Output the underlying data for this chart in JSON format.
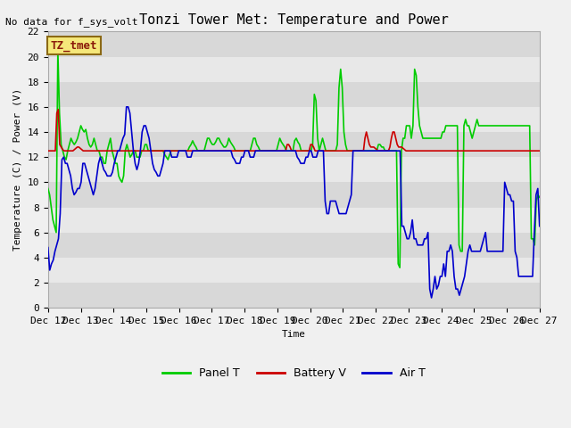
{
  "title": "Tonzi Tower Met: Temperature and Power",
  "no_data_text": "No data for f_sys_volt",
  "box_label": "TZ_tmet",
  "ylabel": "Temperature (C) / Power (V)",
  "xlabel": "Time",
  "ylim": [
    0,
    22
  ],
  "yticks": [
    0,
    2,
    4,
    6,
    8,
    10,
    12,
    14,
    16,
    18,
    20,
    22
  ],
  "xlim": [
    0,
    375
  ],
  "xtick_positions": [
    0,
    24,
    48,
    72,
    96,
    120,
    144,
    168,
    192,
    216,
    240,
    264,
    288,
    312,
    336,
    360
  ],
  "xtick_labels": [
    "Dec 12",
    "Dec 13",
    "Dec 14",
    "Dec 15",
    "Dec 16",
    "Dec 17",
    "Dec 18",
    "Dec 19",
    "Dec 20",
    "Dec 21",
    "Dec 22",
    "Dec 23",
    "Dec 24",
    "Dec 25",
    "Dec 26",
    "Dec 27"
  ],
  "bg_color": "#e8e8e8",
  "plot_bg_color": "#e0e0e0",
  "legend_entries": [
    "Panel T",
    "Battery V",
    "Air T"
  ],
  "legend_colors": [
    "#00cc00",
    "#cc0000",
    "#0000cc"
  ],
  "panel_t": [
    9.5,
    9.0,
    8.0,
    7.0,
    6.5,
    6.0,
    20.5,
    15.5,
    13.0,
    12.5,
    12.0,
    11.8,
    12.5,
    13.0,
    13.5,
    13.2,
    13.0,
    13.2,
    13.5,
    14.0,
    14.5,
    14.2,
    14.0,
    14.2,
    13.5,
    13.0,
    12.8,
    13.0,
    13.5,
    13.0,
    12.5,
    12.5,
    12.0,
    12.0,
    11.5,
    11.5,
    12.5,
    13.0,
    13.5,
    12.5,
    12.0,
    11.5,
    11.5,
    10.5,
    10.2,
    10.0,
    10.5,
    12.5,
    13.0,
    12.5,
    12.0,
    12.2,
    12.5,
    12.5,
    12.0,
    12.0,
    12.0,
    12.5,
    12.5,
    13.0,
    13.0,
    12.5,
    12.5,
    12.5,
    12.5,
    12.5,
    12.5,
    12.5,
    12.5,
    12.5,
    12.5,
    12.2,
    12.0,
    11.8,
    12.2,
    12.5,
    12.5,
    12.5,
    12.5,
    12.5,
    12.5,
    12.5,
    12.5,
    12.5,
    12.5,
    12.5,
    12.8,
    13.0,
    13.3,
    13.0,
    12.8,
    12.5,
    12.5,
    12.5,
    12.5,
    12.5,
    13.0,
    13.5,
    13.5,
    13.2,
    13.0,
    13.0,
    13.2,
    13.5,
    13.5,
    13.2,
    13.0,
    12.8,
    12.8,
    13.0,
    13.5,
    13.2,
    13.0,
    12.8,
    12.5,
    12.5,
    12.5,
    12.5,
    12.5,
    12.5,
    12.5,
    12.5,
    12.5,
    12.5,
    13.0,
    13.5,
    13.5,
    13.0,
    12.8,
    12.5,
    12.5,
    12.5,
    12.5,
    12.5,
    12.5,
    12.5,
    12.5,
    12.5,
    12.5,
    12.5,
    13.0,
    13.5,
    13.2,
    13.0,
    12.8,
    12.5,
    12.5,
    12.5,
    12.5,
    12.5,
    13.3,
    13.5,
    13.2,
    13.0,
    12.5,
    12.5,
    12.5,
    12.5,
    12.5,
    12.5,
    12.5,
    13.0,
    17.0,
    16.5,
    13.5,
    12.5,
    13.0,
    13.5,
    13.0,
    12.5,
    12.5,
    12.5,
    12.5,
    12.5,
    12.5,
    12.5,
    13.0,
    17.5,
    19.0,
    17.5,
    14.0,
    13.0,
    12.5,
    12.5,
    12.5,
    12.5,
    12.5,
    12.5,
    12.5,
    12.5,
    12.5,
    12.5,
    12.5,
    12.5,
    12.5,
    12.5,
    12.5,
    12.5,
    12.5,
    12.5,
    12.5,
    13.0,
    13.0,
    12.8,
    12.8,
    12.5,
    12.5,
    12.5,
    12.5,
    12.5,
    12.5,
    12.5,
    12.5,
    3.5,
    3.2,
    12.5,
    13.5,
    13.5,
    14.5,
    14.5,
    14.5,
    13.5,
    14.5,
    19.0,
    18.5,
    16.0,
    14.5,
    14.0,
    13.5,
    13.5,
    13.5,
    13.5,
    13.5,
    13.5,
    13.5,
    13.5,
    13.5,
    13.5,
    13.5,
    13.5,
    14.0,
    14.0,
    14.5,
    14.5,
    14.5,
    14.5,
    14.5,
    14.5,
    14.5,
    14.5,
    5.0,
    4.5,
    4.5,
    14.5,
    15.0,
    14.5,
    14.5,
    14.0,
    13.5,
    14.0,
    14.5,
    15.0,
    14.5,
    14.5,
    14.5,
    14.5,
    14.5,
    14.5,
    14.5,
    14.5,
    14.5,
    14.5,
    14.5,
    14.5,
    14.5,
    14.5,
    14.5,
    14.5,
    14.5,
    14.5,
    14.5,
    14.5,
    14.5,
    14.5,
    14.5,
    14.5,
    14.5,
    14.5,
    14.5,
    14.5,
    14.5,
    14.5,
    14.5,
    14.5,
    5.5,
    5.5,
    5.0,
    8.5,
    9.0,
    8.8
  ],
  "battery_v": [
    12.5,
    12.5,
    12.5,
    12.5,
    12.5,
    12.5,
    15.5,
    15.8,
    13.0,
    12.8,
    12.6,
    12.5,
    12.5,
    12.5,
    12.5,
    12.5,
    12.5,
    12.5,
    12.6,
    12.7,
    12.8,
    12.8,
    12.7,
    12.6,
    12.5,
    12.5,
    12.5,
    12.5,
    12.5,
    12.5,
    12.5,
    12.5,
    12.5,
    12.5,
    12.5,
    12.5,
    12.5,
    12.5,
    12.5,
    12.5,
    12.5,
    12.5,
    12.5,
    12.5,
    12.5,
    12.5,
    12.5,
    12.5,
    12.5,
    12.5,
    12.5,
    12.5,
    12.5,
    12.5,
    12.5,
    12.5,
    12.5,
    12.5,
    12.5,
    12.5,
    12.5,
    12.5,
    12.5,
    12.5,
    12.5,
    12.5,
    12.5,
    12.5,
    12.5,
    12.5,
    12.5,
    12.5,
    12.5,
    12.5,
    12.5,
    12.5,
    12.5,
    12.5,
    12.5,
    12.5,
    12.5,
    12.5,
    12.5,
    12.5,
    12.5,
    12.5,
    12.5,
    12.5,
    12.5,
    12.5,
    12.5,
    12.5,
    12.5,
    12.5,
    12.5,
    12.5,
    12.5,
    12.5,
    12.5,
    12.5,
    12.5,
    12.5,
    12.5,
    12.5,
    12.5,
    12.5,
    12.5,
    12.5,
    12.5,
    12.5,
    12.5,
    12.5,
    12.5,
    12.5,
    12.5,
    12.5,
    12.5,
    12.5,
    12.5,
    12.5,
    12.5,
    12.5,
    12.5,
    12.5,
    12.5,
    12.5,
    12.5,
    12.5,
    12.5,
    12.5,
    12.5,
    12.5,
    12.5,
    12.5,
    12.5,
    12.5,
    12.5,
    12.5,
    12.5,
    12.5,
    12.5,
    12.5,
    12.5,
    12.5,
    12.5,
    12.5,
    12.5,
    12.5,
    12.5,
    12.5,
    12.5,
    12.5,
    12.5,
    12.5,
    12.5,
    12.5,
    12.5,
    12.5,
    12.5,
    12.5,
    12.5,
    12.5,
    12.5,
    13.0,
    13.0,
    12.8,
    12.5,
    12.5,
    12.5,
    12.5,
    12.5,
    12.5,
    12.5,
    12.5,
    12.5,
    12.5,
    12.5,
    12.5,
    12.5,
    13.0,
    13.0,
    12.8,
    12.5,
    12.5,
    12.5,
    12.5,
    12.5,
    12.5,
    12.5,
    12.5,
    12.5,
    12.5,
    12.5,
    12.5,
    12.5,
    12.5,
    12.5,
    12.5,
    12.5,
    12.5,
    12.5,
    12.5,
    12.5,
    12.5,
    12.5,
    12.5,
    12.5,
    12.5,
    12.5,
    12.5,
    12.5,
    12.5,
    12.5,
    12.5,
    12.5,
    12.5,
    13.5,
    14.0,
    13.5,
    13.0,
    12.8,
    12.8,
    12.8,
    12.7,
    12.6,
    12.5,
    12.5,
    12.5,
    12.5,
    12.5,
    12.5,
    12.5,
    12.5,
    12.8,
    13.5,
    14.0,
    14.0,
    13.5,
    13.0,
    12.8,
    12.8,
    12.8,
    12.7,
    12.6,
    12.5,
    12.5,
    12.5,
    12.5,
    12.5,
    12.5,
    12.5,
    12.5,
    12.5,
    12.5,
    12.5,
    12.5,
    12.5,
    12.5,
    12.5,
    12.5,
    12.5,
    12.5,
    12.5,
    12.5,
    12.5,
    12.5,
    12.5,
    12.5,
    12.5,
    12.5,
    12.5,
    12.5,
    12.5,
    12.5,
    12.5,
    12.5,
    12.5,
    12.5,
    12.5,
    12.5,
    12.5,
    12.5,
    12.5,
    12.5,
    12.5,
    12.5,
    12.5,
    12.5,
    12.5,
    12.5,
    12.5,
    12.5,
    12.5,
    12.5,
    12.5,
    12.5,
    12.5,
    12.5,
    12.5,
    12.5,
    12.5,
    12.5,
    12.5,
    12.5,
    12.5,
    12.5,
    12.5,
    12.5,
    12.5,
    12.5,
    12.5,
    12.5,
    12.5,
    12.5,
    12.5,
    12.5,
    12.5,
    12.5,
    12.5,
    12.5,
    12.5,
    12.5,
    12.5,
    12.5,
    12.5,
    12.5,
    12.5,
    12.5,
    12.5,
    12.5,
    12.5,
    12.5,
    12.5,
    12.5,
    12.5,
    12.5
  ],
  "air_t": [
    4.8,
    3.0,
    3.5,
    3.8,
    4.5,
    5.0,
    5.5,
    7.5,
    11.8,
    12.0,
    11.5,
    11.5,
    11.0,
    10.5,
    9.5,
    9.0,
    9.2,
    9.5,
    9.5,
    10.0,
    11.5,
    11.5,
    11.0,
    10.5,
    10.0,
    9.5,
    9.0,
    9.5,
    10.5,
    11.5,
    12.0,
    11.5,
    11.0,
    10.8,
    10.5,
    10.5,
    10.5,
    10.8,
    11.5,
    12.0,
    12.5,
    12.5,
    13.0,
    13.5,
    13.8,
    16.0,
    16.0,
    15.5,
    14.0,
    12.5,
    11.5,
    11.0,
    11.5,
    12.5,
    14.0,
    14.5,
    14.5,
    14.0,
    13.5,
    12.5,
    11.5,
    11.0,
    10.8,
    10.5,
    10.5,
    11.0,
    11.5,
    12.5,
    12.5,
    12.5,
    12.5,
    12.0,
    12.0,
    12.0,
    12.0,
    12.5,
    12.5,
    12.5,
    12.5,
    12.5,
    12.0,
    12.0,
    12.0,
    12.5,
    12.5,
    12.5,
    12.5,
    12.5,
    12.5,
    12.5,
    12.5,
    12.5,
    12.5,
    12.5,
    12.5,
    12.5,
    12.5,
    12.5,
    12.5,
    12.5,
    12.5,
    12.5,
    12.5,
    12.5,
    12.5,
    12.5,
    12.0,
    11.8,
    11.5,
    11.5,
    11.5,
    12.0,
    12.0,
    12.5,
    12.5,
    12.5,
    12.0,
    12.0,
    12.0,
    12.5,
    12.5,
    12.5,
    12.5,
    12.5,
    12.5,
    12.5,
    12.5,
    12.5,
    12.5,
    12.5,
    12.5,
    12.5,
    12.5,
    12.5,
    12.5,
    12.5,
    12.5,
    12.5,
    12.5,
    12.5,
    12.5,
    12.5,
    12.5,
    12.0,
    11.8,
    11.5,
    11.5,
    11.5,
    12.0,
    12.0,
    12.5,
    12.5,
    12.0,
    12.0,
    12.0,
    12.5,
    12.5,
    12.5,
    12.5,
    8.5,
    7.5,
    7.5,
    8.5,
    8.5,
    8.5,
    8.5,
    8.0,
    7.5,
    7.5,
    7.5,
    7.5,
    7.5,
    8.0,
    8.5,
    9.0,
    12.5,
    12.5,
    12.5,
    12.5,
    12.5,
    12.5,
    12.5,
    12.5,
    12.5,
    12.5,
    12.5,
    12.5,
    12.5,
    12.5,
    12.5,
    12.5,
    12.5,
    12.5,
    12.5,
    12.5,
    12.5,
    12.5,
    12.5,
    12.5,
    12.5,
    12.5,
    12.5,
    12.5,
    6.5,
    6.5,
    6.0,
    5.5,
    5.5,
    6.0,
    7.0,
    5.5,
    5.5,
    5.0,
    5.0,
    5.0,
    5.0,
    5.5,
    5.5,
    6.0,
    1.5,
    0.8,
    1.5,
    2.5,
    1.5,
    1.8,
    2.5,
    2.5,
    3.5,
    2.5,
    4.5,
    4.5,
    5.0,
    4.5,
    2.5,
    1.5,
    1.5,
    1.0,
    1.5,
    2.0,
    2.5,
    3.5,
    4.5,
    5.0,
    4.5,
    4.5,
    4.5,
    4.5,
    4.5,
    4.5,
    5.0,
    5.5,
    6.0,
    4.5,
    4.5,
    4.5,
    4.5,
    4.5,
    4.5,
    4.5,
    4.5,
    4.5,
    4.5,
    10.0,
    9.5,
    9.0,
    9.0,
    8.5,
    8.5,
    4.5,
    4.0,
    2.5,
    2.5,
    2.5,
    2.5,
    2.5,
    2.5,
    2.5,
    2.5,
    2.5,
    6.0,
    9.0,
    9.5,
    6.5
  ]
}
